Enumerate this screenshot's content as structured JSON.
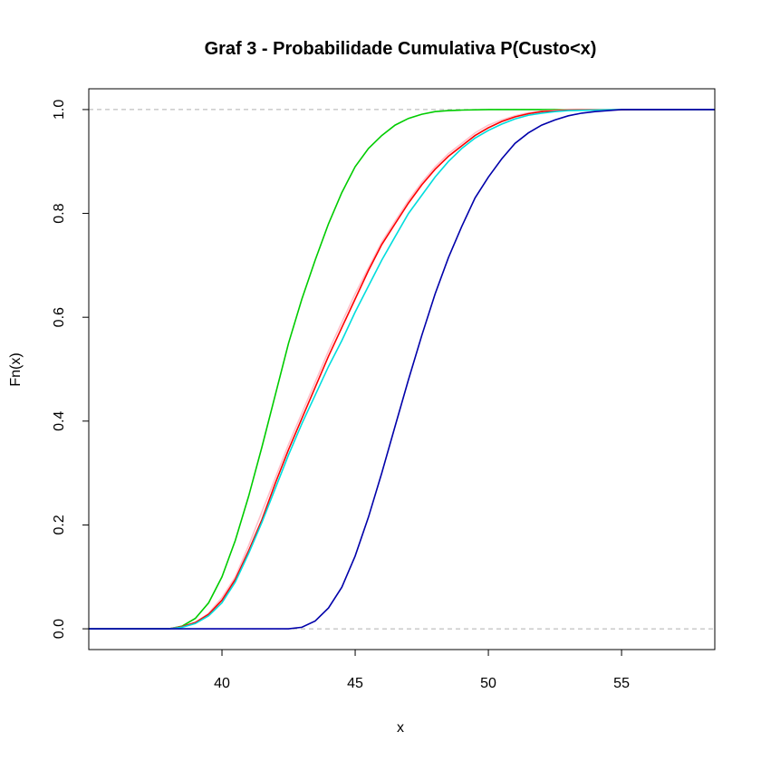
{
  "chart_data": {
    "type": "line",
    "title": "Graf 3 - Probabilidade Cumulativa P(Custo<x)",
    "xlabel": "x",
    "ylabel": "Fn(x)",
    "xlim": [
      35,
      58.5
    ],
    "ylim": [
      -0.04,
      1.04
    ],
    "x_ticks": [
      40,
      45,
      50,
      55
    ],
    "y_ticks": [
      0.0,
      0.2,
      0.4,
      0.6,
      0.8,
      1.0
    ],
    "x_tick_labels": [
      "40",
      "45",
      "50",
      "55"
    ],
    "y_tick_labels": [
      "0.0",
      "0.2",
      "0.4",
      "0.6",
      "0.8",
      "1.0"
    ],
    "grid": false,
    "reference_lines": [
      0,
      1
    ],
    "series": [
      {
        "color": "#00cc00",
        "x": [
          35,
          38,
          38.5,
          39,
          39.5,
          40,
          40.5,
          41,
          41.5,
          42,
          42.5,
          43,
          43.5,
          44,
          44.5,
          45,
          45.5,
          46,
          46.5,
          47,
          47.5,
          48,
          48.5,
          49,
          50,
          58.5
        ],
        "y": [
          0,
          0,
          0.005,
          0.02,
          0.05,
          0.1,
          0.17,
          0.255,
          0.35,
          0.45,
          0.55,
          0.635,
          0.71,
          0.78,
          0.84,
          0.89,
          0.925,
          0.95,
          0.97,
          0.983,
          0.991,
          0.996,
          0.998,
          0.999,
          1,
          1
        ]
      },
      {
        "color": "#ffc0cb",
        "x": [
          35,
          38,
          38.5,
          39,
          39.5,
          40,
          40.5,
          41,
          41.5,
          42,
          42.5,
          43,
          43.5,
          44,
          44.5,
          45,
          45.5,
          46,
          46.5,
          47,
          47.5,
          48,
          48.5,
          49,
          49.5,
          50,
          50.5,
          51,
          51.5,
          52,
          53,
          58.5
        ],
        "y": [
          0,
          0,
          0.004,
          0.012,
          0.03,
          0.06,
          0.1,
          0.16,
          0.225,
          0.29,
          0.355,
          0.415,
          0.475,
          0.535,
          0.59,
          0.645,
          0.695,
          0.745,
          0.785,
          0.825,
          0.86,
          0.89,
          0.915,
          0.935,
          0.955,
          0.97,
          0.98,
          0.988,
          0.994,
          0.997,
          1,
          1
        ]
      },
      {
        "color": "#ff0000",
        "x": [
          35,
          38,
          38.5,
          39,
          39.5,
          40,
          40.5,
          41,
          41.5,
          42,
          42.5,
          43,
          43.5,
          44,
          44.5,
          45,
          45.5,
          46,
          46.5,
          47,
          47.5,
          48,
          48.5,
          49,
          49.5,
          50,
          50.5,
          51,
          51.5,
          52,
          53,
          58.5
        ],
        "y": [
          0,
          0,
          0.004,
          0.012,
          0.028,
          0.055,
          0.095,
          0.15,
          0.21,
          0.28,
          0.345,
          0.405,
          0.465,
          0.525,
          0.58,
          0.635,
          0.69,
          0.74,
          0.78,
          0.82,
          0.855,
          0.885,
          0.91,
          0.93,
          0.95,
          0.965,
          0.977,
          0.986,
          0.992,
          0.996,
          0.999,
          1
        ]
      },
      {
        "color": "#00dddd",
        "x": [
          35,
          38,
          38.5,
          39,
          39.5,
          40,
          40.5,
          41,
          41.5,
          42,
          42.5,
          43,
          43.5,
          44,
          44.5,
          45,
          45.5,
          46,
          46.5,
          47,
          47.5,
          48,
          48.5,
          49,
          49.5,
          50,
          50.5,
          51,
          51.5,
          52,
          52.5,
          53,
          54,
          55,
          58.5
        ],
        "y": [
          0,
          0,
          0.003,
          0.01,
          0.025,
          0.05,
          0.09,
          0.145,
          0.205,
          0.27,
          0.335,
          0.395,
          0.45,
          0.505,
          0.555,
          0.61,
          0.66,
          0.71,
          0.755,
          0.8,
          0.835,
          0.87,
          0.9,
          0.925,
          0.945,
          0.96,
          0.972,
          0.982,
          0.989,
          0.993,
          0.996,
          0.998,
          0.999,
          1,
          1
        ]
      },
      {
        "color": "#0000aa",
        "x": [
          35,
          42.5,
          43,
          43.5,
          44,
          44.5,
          45,
          45.5,
          46,
          46.5,
          47,
          47.5,
          48,
          48.5,
          49,
          49.5,
          50,
          50.5,
          51,
          51.5,
          52,
          52.5,
          53,
          53.5,
          54,
          54.5,
          55,
          58.5
        ],
        "y": [
          0,
          0,
          0.003,
          0.015,
          0.04,
          0.08,
          0.14,
          0.215,
          0.3,
          0.39,
          0.48,
          0.565,
          0.645,
          0.715,
          0.775,
          0.83,
          0.87,
          0.905,
          0.935,
          0.955,
          0.97,
          0.98,
          0.988,
          0.993,
          0.996,
          0.998,
          1,
          1
        ]
      }
    ]
  }
}
